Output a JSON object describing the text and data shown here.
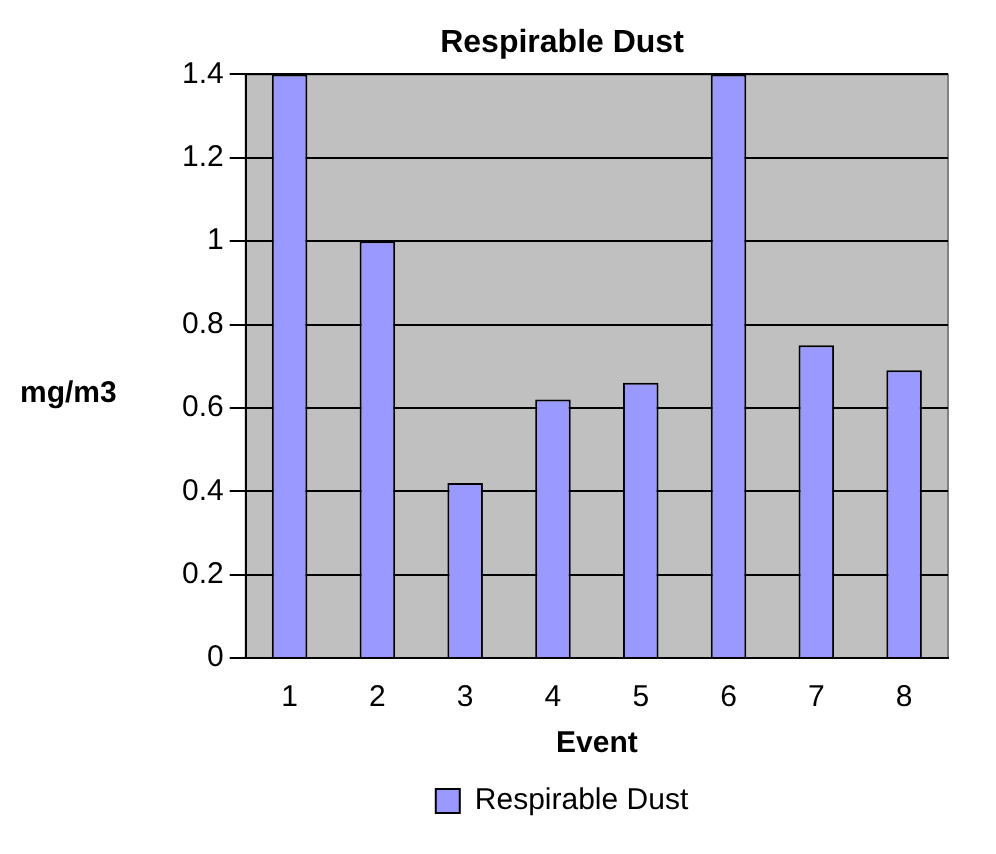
{
  "chart_data": {
    "type": "bar",
    "title": "Respirable Dust",
    "xlabel": "Event",
    "ylabel": "mg/m3",
    "categories": [
      "1",
      "2",
      "3",
      "4",
      "5",
      "6",
      "7",
      "8"
    ],
    "series": [
      {
        "name": "Respirable Dust",
        "color": "#9999ff",
        "values": [
          1.4,
          1.0,
          0.42,
          0.62,
          0.66,
          1.4,
          0.75,
          0.69
        ]
      }
    ],
    "ylim": [
      0,
      1.4
    ],
    "yticks": [
      0,
      0.2,
      0.4,
      0.6,
      0.8,
      1,
      1.2,
      1.4
    ],
    "grid": "y",
    "legend": "bottom"
  }
}
